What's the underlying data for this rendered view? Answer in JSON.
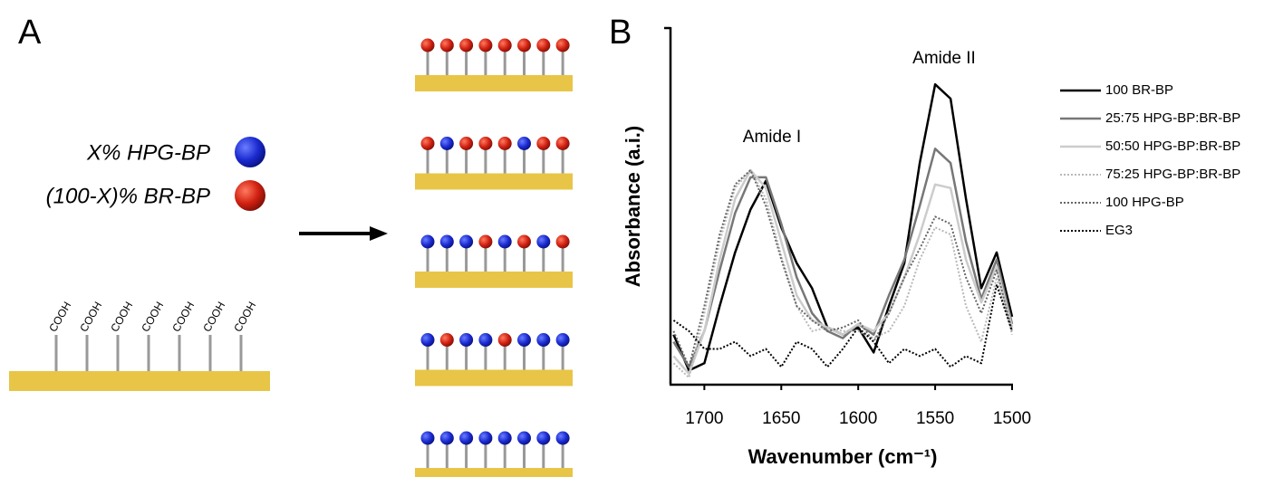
{
  "panel_a": {
    "label": "A",
    "legend": [
      "X% HPG-BP",
      "(100-X)% BR-BP"
    ],
    "cooh_labels": [
      "COOH",
      "COOH",
      "COOH",
      "COOH",
      "COOH",
      "COOH",
      "COOH"
    ]
  },
  "chart_data": {
    "type": "line",
    "panel_label": "B",
    "x_label": "Wavenumber (cm⁻¹)",
    "y_label": "Absorbance (a.i.)",
    "annotations": [
      "Amide I",
      "Amide II"
    ],
    "xlim": [
      1722,
      1500
    ],
    "ylim": [
      0,
      1
    ],
    "xticks": [
      1700,
      1650,
      1600,
      1550,
      1500
    ],
    "x": [
      1720,
      1710,
      1700,
      1690,
      1680,
      1670,
      1660,
      1650,
      1640,
      1630,
      1620,
      1610,
      1600,
      1590,
      1580,
      1570,
      1560,
      1550,
      1540,
      1530,
      1520,
      1510,
      1500
    ],
    "series": [
      {
        "name": "100 BR-BP",
        "color": "#000000",
        "dash": "solid",
        "values": [
          0.14,
          0.04,
          0.06,
          0.22,
          0.37,
          0.49,
          0.57,
          0.44,
          0.34,
          0.27,
          0.16,
          0.14,
          0.16,
          0.09,
          0.22,
          0.34,
          0.62,
          0.84,
          0.8,
          0.52,
          0.27,
          0.37,
          0.19
        ]
      },
      {
        "name": "25:75 HPG-BP:BR-BP",
        "color": "#777777",
        "dash": "solid",
        "values": [
          0.12,
          0.05,
          0.15,
          0.32,
          0.48,
          0.58,
          0.58,
          0.45,
          0.3,
          0.2,
          0.15,
          0.13,
          0.17,
          0.14,
          0.25,
          0.35,
          0.5,
          0.66,
          0.62,
          0.4,
          0.24,
          0.35,
          0.17
        ]
      },
      {
        "name": "50:50 HPG-BP:BR-BP",
        "color": "#cccccc",
        "dash": "solid",
        "values": [
          0.08,
          0.03,
          0.15,
          0.35,
          0.52,
          0.6,
          0.55,
          0.4,
          0.25,
          0.18,
          0.16,
          0.14,
          0.17,
          0.15,
          0.2,
          0.3,
          0.42,
          0.56,
          0.55,
          0.35,
          0.23,
          0.33,
          0.16
        ]
      },
      {
        "name": "75:25 HPG-BP:BR-BP",
        "color": "#b8b8b8",
        "dash": "dotted",
        "values": [
          0.06,
          0.02,
          0.2,
          0.4,
          0.55,
          0.6,
          0.52,
          0.36,
          0.22,
          0.15,
          0.16,
          0.15,
          0.15,
          0.13,
          0.15,
          0.22,
          0.35,
          0.44,
          0.42,
          0.22,
          0.12,
          0.3,
          0.14
        ]
      },
      {
        "name": "100 HPG-BP",
        "color": "#666666",
        "dash": "dotted",
        "values": [
          0.15,
          0.05,
          0.22,
          0.42,
          0.56,
          0.6,
          0.5,
          0.35,
          0.22,
          0.18,
          0.15,
          0.16,
          0.18,
          0.12,
          0.2,
          0.3,
          0.38,
          0.47,
          0.45,
          0.3,
          0.2,
          0.32,
          0.15
        ]
      },
      {
        "name": "EG3",
        "color": "#000000",
        "dash": "dotted",
        "values": [
          0.18,
          0.15,
          0.1,
          0.1,
          0.12,
          0.08,
          0.1,
          0.05,
          0.12,
          0.1,
          0.05,
          0.1,
          0.16,
          0.12,
          0.06,
          0.1,
          0.08,
          0.1,
          0.05,
          0.08,
          0.06,
          0.28,
          0.15
        ]
      }
    ]
  }
}
